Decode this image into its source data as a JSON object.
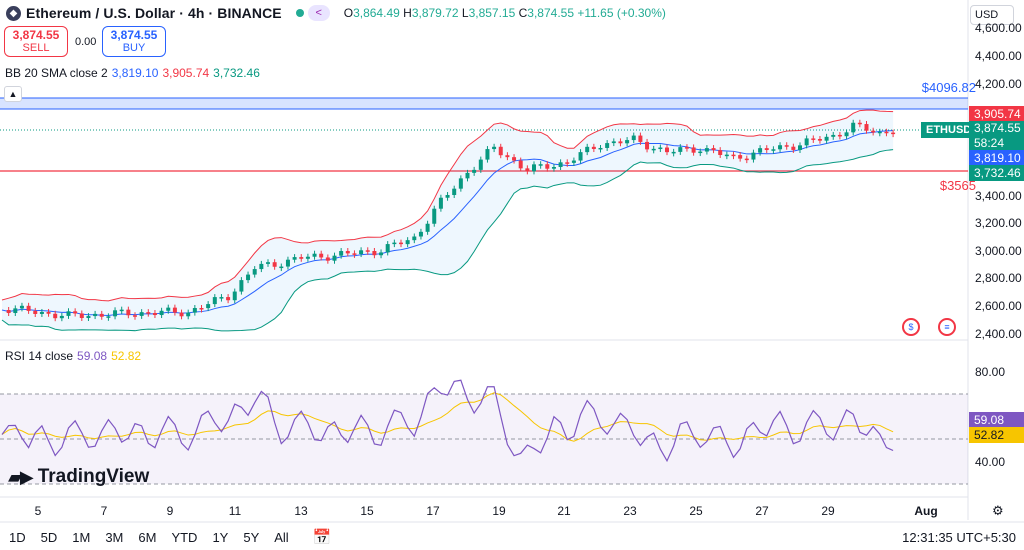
{
  "header": {
    "symbol_title": "Ethereum / U.S. Dollar · 4h · BINANCE",
    "logo_icon": "ethereum-logo-icon",
    "status_dot_icon": "market-open-dot-icon",
    "share_icon": "share-icon",
    "ohlc": [
      {
        "key": "O",
        "value": "3,864.49"
      },
      {
        "key": "H",
        "value": "3,879.72"
      },
      {
        "key": "L",
        "value": "3,857.15"
      },
      {
        "key": "C",
        "value": "3,874.55"
      }
    ],
    "change": "+11.65 (+0.30%)"
  },
  "trade": {
    "sell_price": "3,874.55",
    "sell_label": "SELL",
    "spread": "0.00",
    "buy_price": "3,874.55",
    "buy_label": "BUY"
  },
  "bb_legend": {
    "label": "BB 20 SMA close 2",
    "basis": "3,819.10",
    "upper": "3,905.74",
    "lower": "3,732.46"
  },
  "collapse_icon": "chevron-up-icon",
  "currency": "USD",
  "levels": {
    "resistance": "$4096.82",
    "support": "$3565"
  },
  "price_axis": {
    "ticks": [
      "4,600.00",
      "4,400.00",
      "4,200.00",
      "3,400.00",
      "3,200.00",
      "3,000.00",
      "2,800.00",
      "2,600.00",
      "2,400.00"
    ],
    "tags": {
      "upper": "3,905.74",
      "last": "3,874.55",
      "countdown": "58:24",
      "basis": "3,819.10",
      "lower": "3,732.46",
      "symbol": "ETHUSD"
    }
  },
  "rsi": {
    "label": "RSI 14 close",
    "value": "59.08",
    "ma": "52.82",
    "ticks": [
      "80.00",
      "40.00"
    ]
  },
  "time_axis": {
    "labels": [
      "5",
      "7",
      "9",
      "11",
      "13",
      "15",
      "17",
      "19",
      "21",
      "23",
      "25",
      "27",
      "29",
      "Aug"
    ]
  },
  "brand": "TradingView",
  "brand_icon": "tradingview-logo-icon",
  "ranges": [
    "1D",
    "5D",
    "1M",
    "3M",
    "6M",
    "YTD",
    "1Y",
    "5Y",
    "All"
  ],
  "calendar_icon": "calendar-goto-icon",
  "clock": "12:31:35 UTC+5:30",
  "settings_icon": "gear-icon",
  "event_icons": [
    "economic-event-icon",
    "earnings-flag-icon"
  ],
  "colors": {
    "up": "#089981",
    "down": "#f23645",
    "basis": "#2962ff",
    "rsi": "#7e57c2",
    "rsi_ma": "#f7c500"
  }
}
